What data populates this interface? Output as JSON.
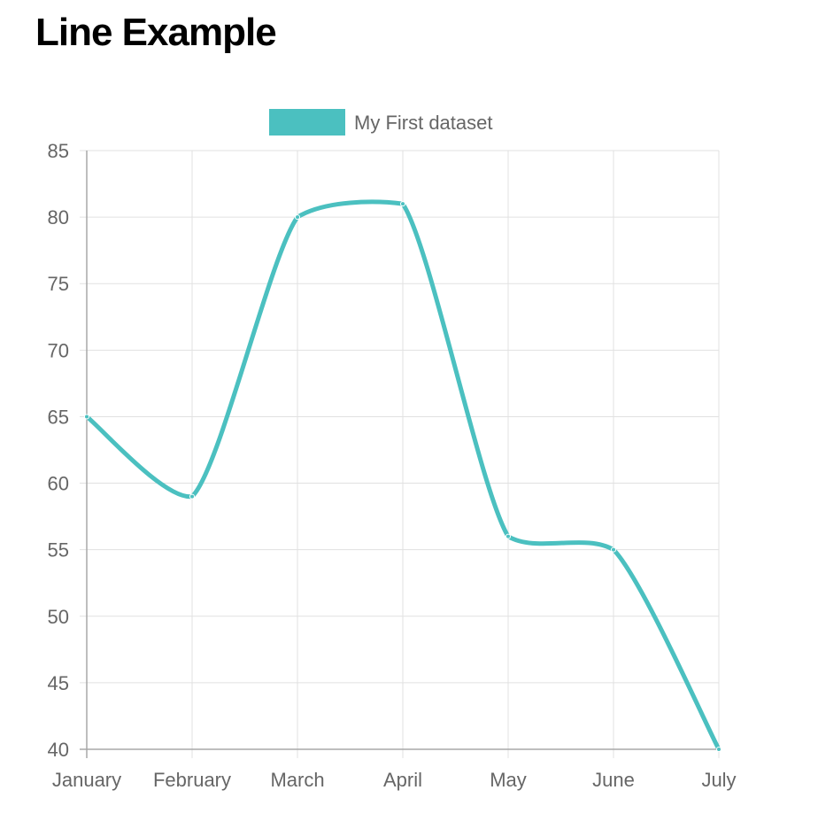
{
  "page": {
    "title": "Line Example"
  },
  "chart_data": {
    "type": "line",
    "categories": [
      "January",
      "February",
      "March",
      "April",
      "May",
      "June",
      "July"
    ],
    "series": [
      {
        "name": "My First dataset",
        "values": [
          65,
          59,
          80,
          81,
          56,
          55,
          40
        ],
        "color": "#4bc0c0"
      }
    ],
    "ylim": [
      40,
      85
    ],
    "yticks": [
      40,
      45,
      50,
      55,
      60,
      65,
      70,
      75,
      80,
      85
    ],
    "grid": true,
    "legend": "top-center",
    "curved": true
  }
}
